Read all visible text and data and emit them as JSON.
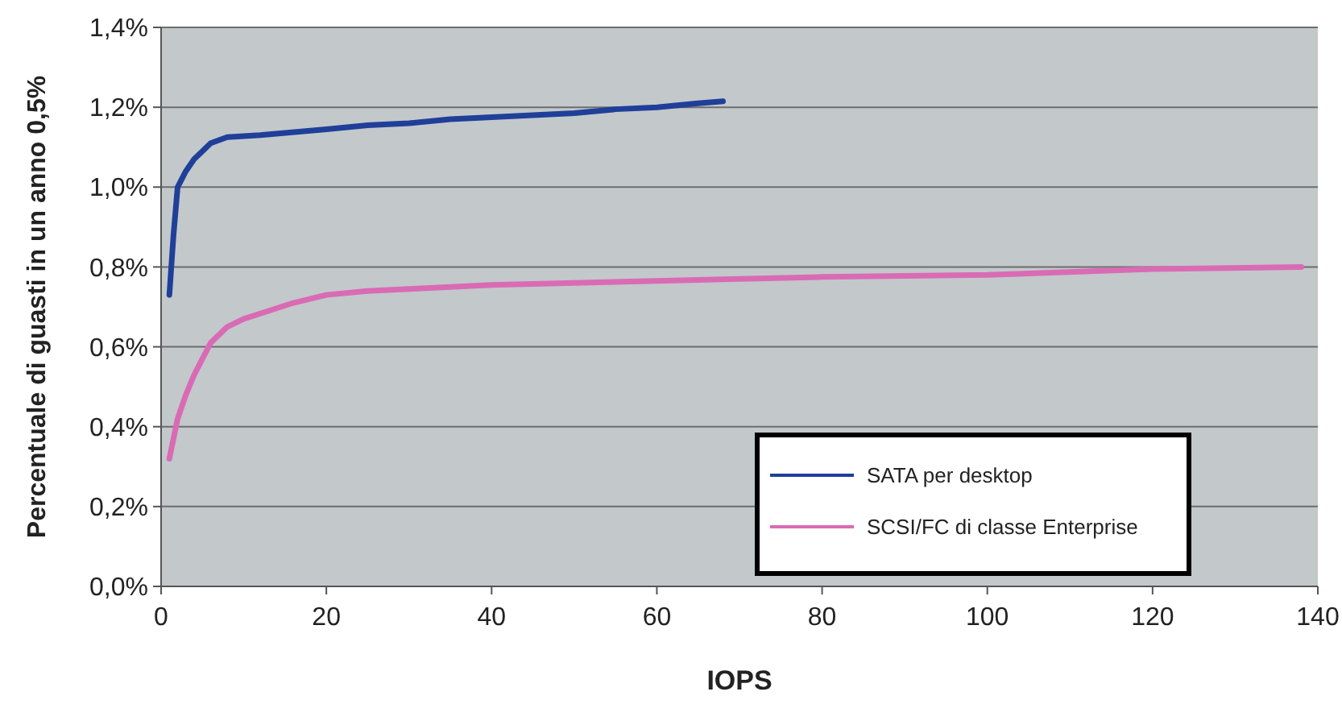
{
  "chart_data": {
    "type": "line",
    "xlabel": "IOPS",
    "ylabel": "Percentuale di guasti in un anno 0,5%",
    "xlim": [
      0,
      140
    ],
    "xticks": [
      0,
      20,
      40,
      60,
      80,
      100,
      120,
      140
    ],
    "ylim": [
      0,
      1.4
    ],
    "yticks": [
      {
        "value": 0,
        "label": "0,0%"
      },
      {
        "value": 0.2,
        "label": "0,2%"
      },
      {
        "value": 0.4,
        "label": "0,4%"
      },
      {
        "value": 0.6,
        "label": "0,6%"
      },
      {
        "value": 0.8,
        "label": "0,8%"
      },
      {
        "value": 1.0,
        "label": "1,0%"
      },
      {
        "value": 1.2,
        "label": "1,2%"
      },
      {
        "value": 1.4,
        "label": "1,4%"
      }
    ],
    "grid": "y",
    "legend": "bottom right",
    "line_style": "solid",
    "series": [
      {
        "name": "SATA per desktop",
        "color": "#1f3f99",
        "x": [
          1,
          1.5,
          2,
          3,
          4,
          5,
          6,
          8,
          12,
          20,
          25,
          30,
          35,
          40,
          45,
          50,
          55,
          60,
          65,
          68
        ],
        "values": [
          0.73,
          0.88,
          1.0,
          1.04,
          1.07,
          1.09,
          1.11,
          1.125,
          1.13,
          1.145,
          1.155,
          1.16,
          1.17,
          1.175,
          1.18,
          1.185,
          1.195,
          1.2,
          1.21,
          1.215
        ]
      },
      {
        "name": "SCSI/FC di classe Enterprise",
        "color": "#d96bb5",
        "x": [
          1,
          1.5,
          2,
          3,
          4,
          5,
          6,
          8,
          10,
          13,
          16,
          20,
          25,
          30,
          40,
          50,
          60,
          70,
          80,
          100,
          120,
          138
        ],
        "values": [
          0.32,
          0.37,
          0.42,
          0.48,
          0.53,
          0.57,
          0.61,
          0.65,
          0.67,
          0.69,
          0.71,
          0.73,
          0.74,
          0.745,
          0.755,
          0.76,
          0.765,
          0.77,
          0.775,
          0.78,
          0.795,
          0.8
        ]
      }
    ]
  }
}
